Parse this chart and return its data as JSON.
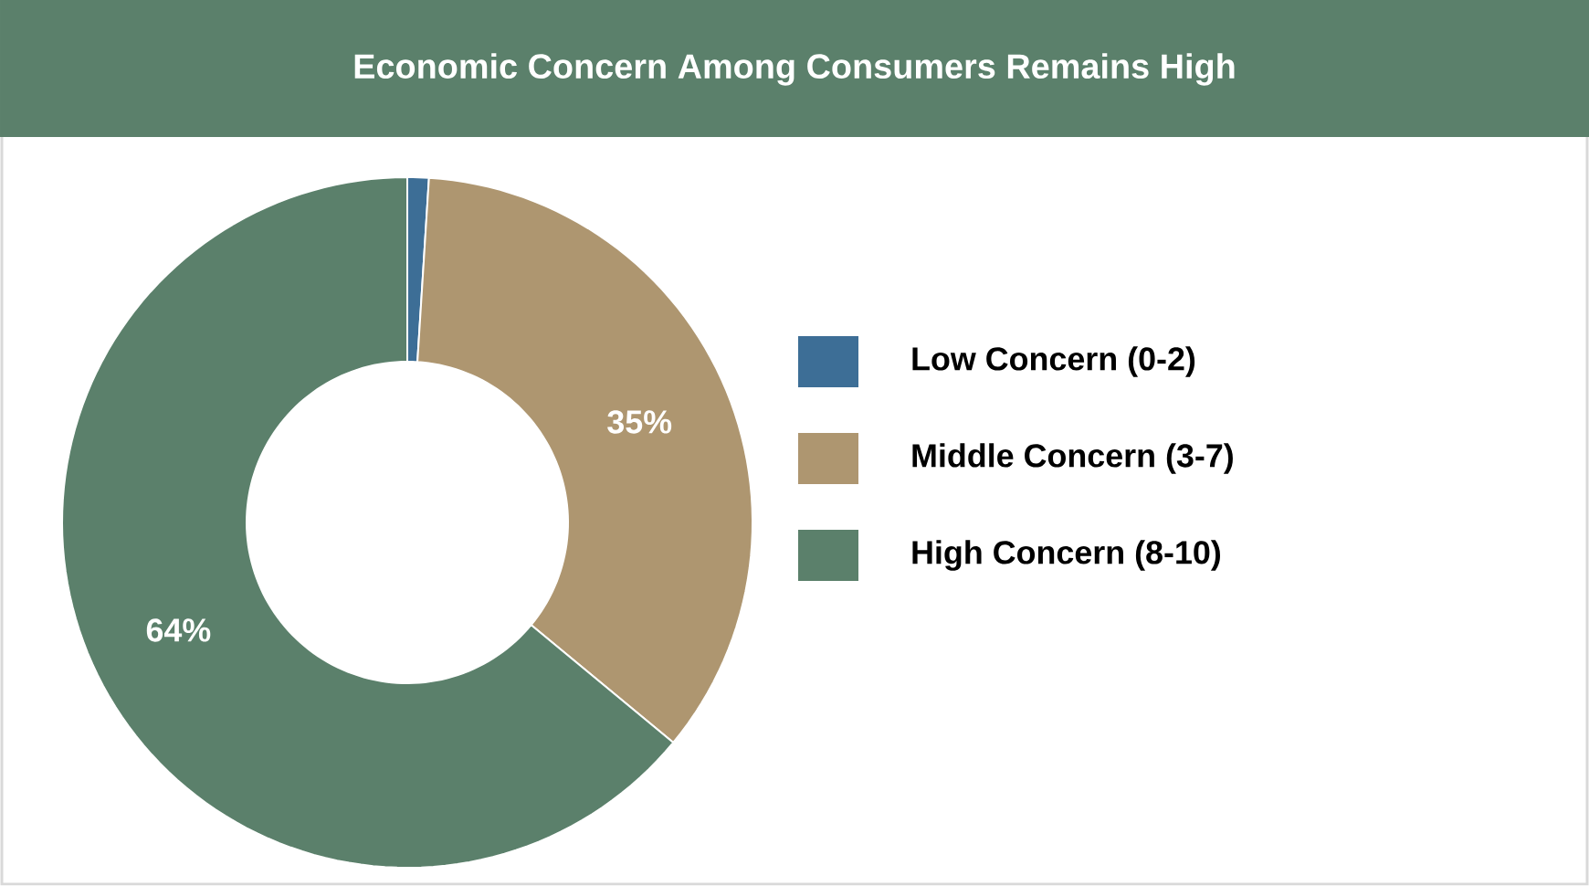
{
  "chart_data": {
    "type": "donut",
    "title": "Economic Concern Among Consumers Remains High",
    "categories": [
      "Low Concern (0-2)",
      "Middle Concern (3-7)",
      "High Concern (8-10)"
    ],
    "values": [
      1,
      35,
      64
    ],
    "colors": [
      "#3d6e96",
      "#ae9670",
      "#5b806b"
    ],
    "value_labels": [
      null,
      "35%",
      "64%"
    ],
    "legend": "right"
  }
}
